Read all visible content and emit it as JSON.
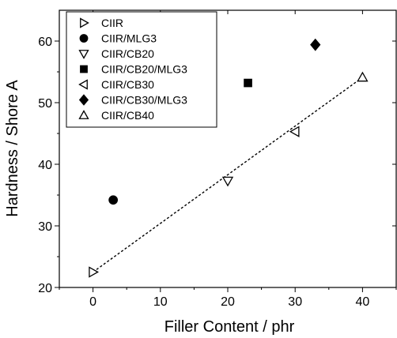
{
  "chart_data": {
    "type": "scatter",
    "xlabel": "Filler Content / phr",
    "ylabel": "Hardness / Shore A",
    "xlim": [
      -5,
      45
    ],
    "ylim": [
      20,
      65
    ],
    "xticks": [
      0,
      10,
      20,
      30,
      40
    ],
    "yticks": [
      20,
      30,
      40,
      50,
      60
    ],
    "grid": false,
    "legend_position": "top-left",
    "series": [
      {
        "name": "CIIR",
        "marker": "triangle-right",
        "filled": false,
        "points": [
          {
            "x": 0,
            "y": 22.5
          }
        ]
      },
      {
        "name": "CIIR/MLG3",
        "marker": "circle",
        "filled": true,
        "points": [
          {
            "x": 3,
            "y": 34.2
          }
        ]
      },
      {
        "name": "CIIR/CB20",
        "marker": "triangle-down",
        "filled": false,
        "points": [
          {
            "x": 20,
            "y": 37.3
          }
        ]
      },
      {
        "name": "CIIR/CB20/MLG3",
        "marker": "square",
        "filled": true,
        "points": [
          {
            "x": 23,
            "y": 53.2
          }
        ]
      },
      {
        "name": "CIIR/CB30",
        "marker": "triangle-left",
        "filled": false,
        "points": [
          {
            "x": 30,
            "y": 45.3
          }
        ]
      },
      {
        "name": "CIIR/CB30/MLG3",
        "marker": "diamond",
        "filled": true,
        "points": [
          {
            "x": 33,
            "y": 59.4
          }
        ]
      },
      {
        "name": "CIIR/CB40",
        "marker": "triangle-up",
        "filled": false,
        "points": [
          {
            "x": 40,
            "y": 54.1
          }
        ]
      }
    ],
    "trendline": {
      "style": "dotted",
      "x": [
        0,
        40
      ],
      "y": [
        22.5,
        54.1
      ]
    }
  }
}
